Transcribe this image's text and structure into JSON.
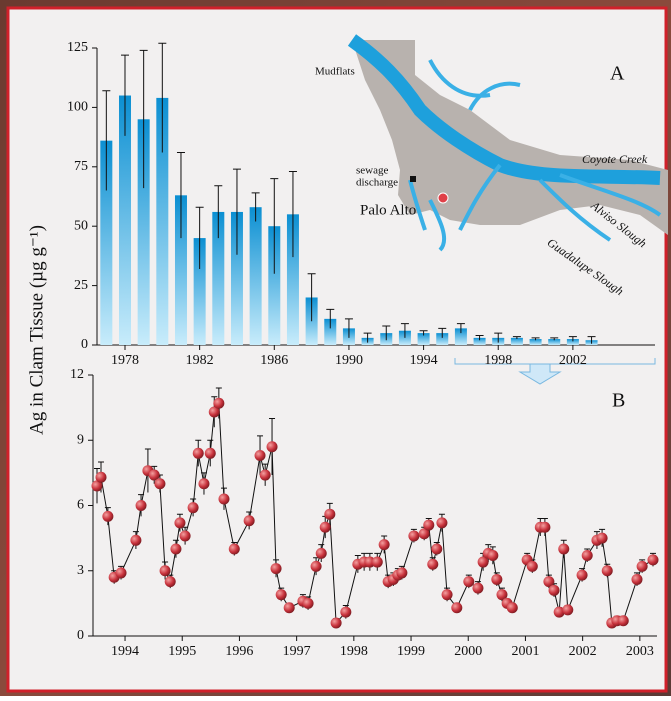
{
  "chart_data": [
    {
      "type": "bar",
      "ylabel": "Ag in Clam Tissue (µg g⁻¹)",
      "panel_label": "A",
      "x": [
        1977,
        1978,
        1979,
        1980,
        1981,
        1982,
        1983,
        1984,
        1985,
        1986,
        1987,
        1988,
        1989,
        1990,
        1991,
        1992,
        1993,
        1994,
        1995,
        1996,
        1997,
        1998,
        1999,
        2000,
        2001,
        2002,
        2003
      ],
      "values": [
        86,
        105,
        95,
        104,
        63,
        45,
        56,
        56,
        58,
        50,
        55,
        20,
        11,
        7,
        3,
        5,
        6,
        5,
        5,
        7,
        3,
        3,
        3,
        2.5,
        2.5,
        2.5,
        2
      ],
      "errors": [
        21,
        17,
        29,
        23,
        18,
        13,
        11,
        18,
        6,
        20,
        18,
        10,
        4,
        4,
        2,
        3,
        3,
        1,
        2,
        2,
        1,
        2,
        0.5,
        0.5,
        0.5,
        1,
        1.5
      ],
      "color": "#0b8fd2",
      "xlim": [
        1976.5,
        2006.4
      ],
      "xticks": [
        1978,
        1982,
        1986,
        1990,
        1994,
        1998,
        2002
      ],
      "ylim": [
        0,
        125
      ],
      "yticks": [
        0,
        25,
        50,
        75,
        100,
        125
      ],
      "annotations": [
        "Mudflats",
        "sewage",
        "discharge",
        "Palo Alto",
        "Coyote Creek",
        "Alviso Slough",
        "Guadalupe Slough"
      ]
    },
    {
      "type": "line",
      "panel_label": "B",
      "x": [
        1994.01,
        1994.08,
        1994.2,
        1994.31,
        1994.43,
        1994.69,
        1994.78,
        1994.9,
        1995.01,
        1995.11,
        1995.2,
        1995.29,
        1995.39,
        1995.46,
        1995.55,
        1995.69,
        1995.78,
        1995.88,
        1995.99,
        1996.06,
        1996.14,
        1996.23,
        1996.41,
        1996.67,
        1996.86,
        1996.95,
        1997.07,
        1997.14,
        1997.23,
        1997.37,
        1997.61,
        1997.7,
        1997.84,
        1997.93,
        1998.0,
        1998.08,
        1998.19,
        1998.36,
        1998.57,
        1998.68,
        1998.78,
        1998.91,
        1999.03,
        1999.1,
        1999.19,
        1999.27,
        1999.34,
        1999.55,
        1999.73,
        1999.81,
        1999.88,
        1999.95,
        2000.04,
        2000.13,
        2000.3,
        2000.51,
        2000.67,
        2000.76,
        2000.85,
        2000.93,
        2001.0,
        2001.09,
        2001.18,
        2001.27,
        2001.53,
        2001.62,
        2001.76,
        2001.84,
        2001.91,
        2002.0,
        2002.09,
        2002.17,
        2002.24,
        2002.49,
        2002.58,
        2002.75,
        2002.84,
        2002.93,
        2003.01,
        2003.1,
        2003.21,
        2003.45,
        2003.54,
        2003.73
      ],
      "values": [
        6.9,
        7.3,
        5.5,
        2.7,
        2.9,
        4.4,
        6.0,
        7.6,
        7.4,
        7.0,
        3.0,
        2.5,
        4.0,
        5.2,
        4.6,
        5.9,
        8.4,
        7.0,
        8.4,
        10.3,
        10.7,
        6.3,
        4.0,
        5.3,
        8.3,
        7.4,
        8.7,
        3.1,
        1.9,
        1.3,
        1.6,
        1.5,
        3.2,
        3.8,
        5.0,
        5.6,
        0.6,
        1.1,
        3.3,
        3.4,
        3.4,
        3.4,
        4.2,
        2.5,
        2.6,
        2.8,
        2.9,
        4.6,
        4.7,
        5.1,
        3.3,
        4.0,
        5.2,
        1.9,
        1.3,
        2.5,
        2.2,
        3.4,
        3.8,
        3.7,
        2.6,
        1.9,
        1.5,
        1.3,
        3.5,
        3.2,
        5.0,
        5.0,
        2.5,
        2.1,
        1.1,
        4.0,
        1.2,
        2.8,
        3.7,
        4.4,
        4.5,
        3.0,
        0.6,
        0.7,
        0.7,
        2.6,
        3.2,
        3.5
      ],
      "errors": [
        0.8,
        0.7,
        0.4,
        0.3,
        0.3,
        0.4,
        0.5,
        1.0,
        0.4,
        0.4,
        0.4,
        0.3,
        0.4,
        0.4,
        0.4,
        0.4,
        0.6,
        0.5,
        0.6,
        0.7,
        0.7,
        0.5,
        0.3,
        0.4,
        0.9,
        0.5,
        1.3,
        0.4,
        0.3,
        0.2,
        0.3,
        0.3,
        0.4,
        0.4,
        0.5,
        0.5,
        0.2,
        0.3,
        0.4,
        0.4,
        0.4,
        0.4,
        0.4,
        0.3,
        0.3,
        0.3,
        0.3,
        0.3,
        0.3,
        0.3,
        0.3,
        0.3,
        0.4,
        0.3,
        0.2,
        0.3,
        0.3,
        0.4,
        0.4,
        0.4,
        0.3,
        0.3,
        0.2,
        0.2,
        0.3,
        0.3,
        0.4,
        0.4,
        0.3,
        0.3,
        0.2,
        0.4,
        0.2,
        0.3,
        0.3,
        0.4,
        0.4,
        0.3,
        0.2,
        0.2,
        0.2,
        0.3,
        0.3,
        0.3
      ],
      "color": "#c8323c",
      "xlim": [
        1993.94,
        2003.8
      ],
      "xticks": [
        {
          "value": 1994.5,
          "label": "1994"
        },
        {
          "value": 1995.5,
          "label": "1995"
        },
        {
          "value": 1996.5,
          "label": "1996"
        },
        {
          "value": 1997.5,
          "label": "1997"
        },
        {
          "value": 1998.5,
          "label": "1998"
        },
        {
          "value": 1999.5,
          "label": "1999"
        },
        {
          "value": 2000.5,
          "label": "2000"
        },
        {
          "value": 2001.5,
          "label": "2001"
        },
        {
          "value": 2002.5,
          "label": "2002"
        },
        {
          "value": 2003.5,
          "label": "2003"
        }
      ],
      "ylim": [
        0,
        12
      ],
      "yticks": [
        0,
        3,
        6,
        9,
        12
      ]
    }
  ]
}
